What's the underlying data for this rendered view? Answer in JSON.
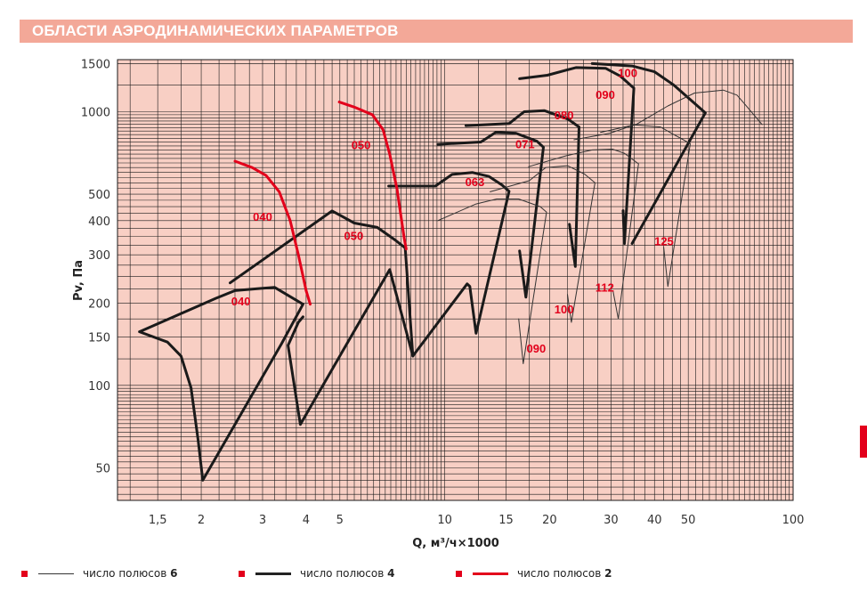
{
  "header": {
    "title": "ОБЛАСТИ АЭРОДИНАМИЧЕСКИХ ПАРАМЕТРОВ"
  },
  "legend": {
    "items": [
      {
        "label": "число полюсов ",
        "poles": "6",
        "color": "#333333",
        "weight": "thin"
      },
      {
        "label": "число полюсов ",
        "poles": "4",
        "color": "#222222",
        "weight": "thick"
      },
      {
        "label": "число полюсов ",
        "poles": "2",
        "color": "#e3001b",
        "weight": "thick"
      }
    ]
  },
  "colors": {
    "header_bg": "#f3a898",
    "plot_bg": "#f8cfc4",
    "grid": "#1a1a1a",
    "label_red": "#e3001b",
    "curve_dark": "#1a1a1a"
  },
  "chart_data": {
    "type": "line",
    "title": "ОБЛАСТИ АЭРОДИНАМИЧЕСКИХ ПАРАМЕТРОВ",
    "xlabel": "Q, м³/ч×1000",
    "ylabel": "Pv, Па",
    "xscale": "log",
    "yscale": "log",
    "xlim": [
      1.15,
      100
    ],
    "ylim": [
      38,
      1550
    ],
    "x_ticks": [
      {
        "v": 1.5,
        "t": "1,5"
      },
      {
        "v": 2,
        "t": "2"
      },
      {
        "v": 3,
        "t": "3"
      },
      {
        "v": 4,
        "t": "4"
      },
      {
        "v": 5,
        "t": "5"
      },
      {
        "v": 10,
        "t": "10"
      },
      {
        "v": 15,
        "t": "15"
      },
      {
        "v": 20,
        "t": "20"
      },
      {
        "v": 30,
        "t": "30"
      },
      {
        "v": 40,
        "t": "40"
      },
      {
        "v": 50,
        "t": "50"
      },
      {
        "v": 100,
        "t": "100"
      }
    ],
    "y_ticks": [
      {
        "v": 50,
        "t": "50"
      },
      {
        "v": 100,
        "t": "100"
      },
      {
        "v": 150,
        "t": "150"
      },
      {
        "v": 200,
        "t": "200"
      },
      {
        "v": 300,
        "t": "300"
      },
      {
        "v": 400,
        "t": "400"
      },
      {
        "v": 500,
        "t": "500"
      },
      {
        "v": 1000,
        "t": "1000"
      },
      {
        "v": 1500,
        "t": "1500"
      }
    ],
    "grid": true,
    "legend_position": "bottom",
    "series": [
      {
        "style": "thick",
        "points": [
          [
            1.33,
            157
          ],
          [
            1.6,
            144
          ],
          [
            1.75,
            128
          ],
          [
            1.87,
            98
          ],
          [
            1.96,
            63
          ],
          [
            2.02,
            45
          ],
          [
            3.4,
            142
          ],
          [
            3.92,
            198
          ],
          [
            3.25,
            228
          ],
          [
            2.95,
            226
          ],
          [
            2.5,
            222
          ],
          [
            2.2,
            208
          ],
          [
            1.33,
            157
          ]
        ]
      },
      {
        "style": "thick",
        "points": [
          [
            2.42,
            237
          ],
          [
            4.75,
            434
          ],
          [
            5.5,
            392
          ],
          [
            6.4,
            378
          ],
          [
            7.2,
            340
          ],
          [
            7.7,
            318
          ],
          [
            8.1,
            128
          ],
          [
            6.95,
            265
          ],
          [
            3.85,
            72
          ],
          [
            3.55,
            140
          ],
          [
            3.8,
            170
          ],
          [
            3.92,
            178
          ]
        ]
      },
      {
        "style": "thick",
        "points": [
          [
            6.9,
            535
          ],
          [
            9.4,
            535
          ],
          [
            10.5,
            590
          ],
          [
            12,
            600
          ],
          [
            13.4,
            580
          ],
          [
            14.6,
            540
          ],
          [
            15.3,
            512
          ],
          [
            12.3,
            155
          ],
          [
            11.8,
            230
          ],
          [
            11.6,
            235
          ],
          [
            8.1,
            128
          ]
        ]
      },
      {
        "style": "thick",
        "points": [
          [
            9.55,
            760
          ],
          [
            12.7,
            775
          ],
          [
            14,
            840
          ],
          [
            16,
            835
          ],
          [
            18.4,
            780
          ],
          [
            19.2,
            742
          ],
          [
            17.1,
            210
          ],
          [
            16.4,
            310
          ]
        ]
      },
      {
        "style": "thick",
        "points": [
          [
            11.5,
            890
          ],
          [
            15.3,
            905
          ],
          [
            16.9,
            1000
          ],
          [
            19.3,
            1010
          ],
          [
            22.6,
            940
          ],
          [
            24.3,
            880
          ],
          [
            23.7,
            272
          ],
          [
            22.8,
            388
          ]
        ]
      },
      {
        "style": "thick",
        "points": [
          [
            16.4,
            1320
          ],
          [
            19.7,
            1360
          ],
          [
            23.8,
            1450
          ],
          [
            29,
            1440
          ],
          [
            31.9,
            1350
          ],
          [
            34.9,
            1220
          ],
          [
            32.8,
            330
          ],
          [
            32.5,
            435
          ]
        ]
      },
      {
        "style": "thick",
        "points": [
          [
            26.5,
            1500
          ],
          [
            34.5,
            1470
          ],
          [
            40,
            1400
          ],
          [
            45.5,
            1250
          ],
          [
            51,
            1100
          ],
          [
            56,
            990
          ],
          [
            34.5,
            330
          ]
        ]
      },
      {
        "style": "thin",
        "points": [
          [
            9.55,
            400
          ],
          [
            12.3,
            460
          ],
          [
            14.1,
            480
          ],
          [
            16.3,
            480
          ],
          [
            18.8,
            450
          ],
          [
            19.6,
            430
          ],
          [
            16.8,
            120
          ],
          [
            16.3,
            175
          ]
        ]
      },
      {
        "style": "thin",
        "points": [
          [
            13.5,
            510
          ],
          [
            17.5,
            560
          ],
          [
            19.5,
            625
          ],
          [
            22.5,
            635
          ],
          [
            25.2,
            592
          ],
          [
            27,
            550
          ],
          [
            23.1,
            170
          ],
          [
            22.5,
            215
          ]
        ]
      },
      {
        "style": "thin",
        "points": [
          [
            17.4,
            630
          ],
          [
            22.3,
            690
          ],
          [
            26.5,
            725
          ],
          [
            30.3,
            730
          ],
          [
            32.8,
            705
          ],
          [
            36,
            645
          ],
          [
            31.5,
            175
          ],
          [
            30.4,
            222
          ]
        ]
      },
      {
        "style": "thin",
        "points": [
          [
            23.5,
            790
          ],
          [
            29.8,
            835
          ],
          [
            35,
            895
          ],
          [
            41.6,
            880
          ],
          [
            45.1,
            830
          ],
          [
            50.7,
            765
          ],
          [
            43.7,
            230
          ],
          [
            42.5,
            320
          ]
        ]
      },
      {
        "style": "thin",
        "points": [
          [
            28,
            840
          ],
          [
            35.5,
            900
          ],
          [
            43.7,
            1050
          ],
          [
            52.1,
            1170
          ],
          [
            63,
            1200
          ],
          [
            69,
            1150
          ],
          [
            72,
            1080
          ],
          [
            81.5,
            898
          ]
        ]
      },
      {
        "style": "red",
        "points": [
          [
            2.5,
            660
          ],
          [
            2.8,
            625
          ],
          [
            3.07,
            585
          ],
          [
            3.35,
            510
          ],
          [
            3.6,
            400
          ],
          [
            3.8,
            300
          ],
          [
            4.0,
            222
          ],
          [
            4.11,
            198
          ]
        ]
      },
      {
        "style": "red",
        "points": [
          [
            4.98,
            1085
          ],
          [
            5.5,
            1040
          ],
          [
            6.2,
            975
          ],
          [
            6.65,
            860
          ],
          [
            6.95,
            700
          ],
          [
            7.3,
            520
          ],
          [
            7.5,
            410
          ],
          [
            7.65,
            345
          ],
          [
            7.75,
            315
          ]
        ]
      }
    ],
    "labels": [
      {
        "t": "040",
        "x": 3.0,
        "y": 400
      },
      {
        "t": "040",
        "x": 2.6,
        "y": 196
      },
      {
        "t": "050",
        "x": 5.75,
        "y": 730
      },
      {
        "t": "050",
        "x": 5.48,
        "y": 340
      },
      {
        "t": "063",
        "x": 12.2,
        "y": 535
      },
      {
        "t": "071",
        "x": 17.0,
        "y": 735
      },
      {
        "t": "080",
        "x": 22.0,
        "y": 940
      },
      {
        "t": "090",
        "x": 28.9,
        "y": 1115
      },
      {
        "t": "100",
        "x": 33.5,
        "y": 1340
      },
      {
        "t": "090",
        "x": 18.3,
        "y": 132
      },
      {
        "t": "100",
        "x": 22.0,
        "y": 183
      },
      {
        "t": "112",
        "x": 28.8,
        "y": 220
      },
      {
        "t": "125",
        "x": 42.6,
        "y": 325
      }
    ]
  }
}
